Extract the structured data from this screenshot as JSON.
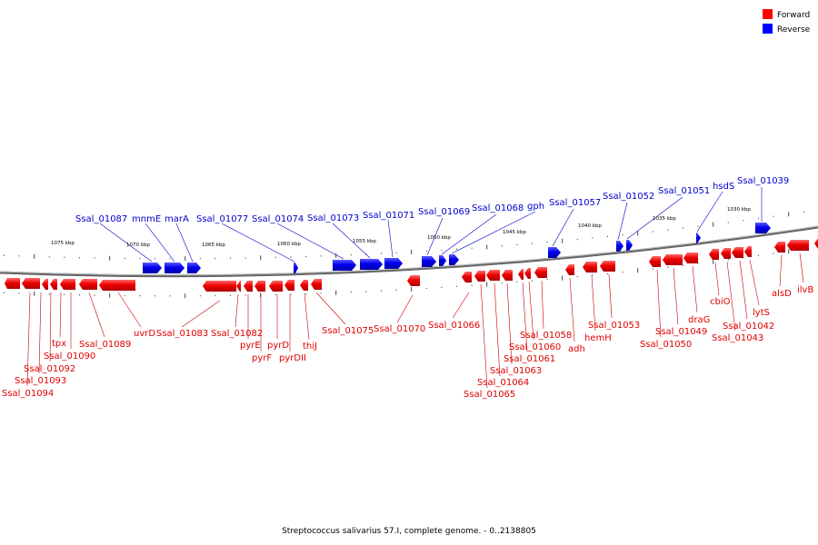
{
  "legend": [
    {
      "label": "Forward",
      "color": "#ff0000"
    },
    {
      "label": "Reverse",
      "color": "#0000ff"
    }
  ],
  "caption": "Streptococcus salivarius 57.I, complete genome. - 0..2138805",
  "colors": {
    "forward": "#ff0000",
    "reverse": "#0000ff",
    "backbone": "#888888"
  },
  "position_labels": [
    "1075 kbp",
    "1070 kbp",
    "1065 kbp",
    "1060 kbp",
    "1055 kbp",
    "1050 kbp",
    "1045 kbp",
    "1040 kbp",
    "1035 kbp",
    "1030 kbp"
  ],
  "reverse_genes": [
    "Ssal_01087",
    "mnmE",
    "marA",
    "Ssal_01077",
    "Ssal_01074",
    "Ssal_01073",
    "Ssal_01071",
    "Ssal_01069",
    "Ssal_01068",
    "gph",
    "Ssal_01057",
    "Ssal_01052",
    "Ssal_01051",
    "hsdS",
    "Ssal_01039"
  ],
  "forward_genes": [
    "Ssal_01094",
    "Ssal_01093",
    "Ssal_01092",
    "tpx",
    "Ssal_01090",
    "Ssal_01089",
    "uvrD",
    "Ssal_01083",
    "Ssal_01082",
    "pyrE",
    "pyrF",
    "pyrD",
    "pyrDII",
    "thiJ",
    "Ssal_01075",
    "Ssal_01070",
    "Ssal_01066",
    "Ssal_01065",
    "Ssal_01064",
    "Ssal_01063",
    "Ssal_01061",
    "Ssal_01060",
    "Ssal_01058",
    "adh",
    "hemH",
    "Ssal_01053",
    "Ssal_01050",
    "Ssal_01049",
    "draG",
    "cbiO",
    "Ssal_01043",
    "Ssal_01042",
    "lytS",
    "alsD",
    "ilvB"
  ]
}
